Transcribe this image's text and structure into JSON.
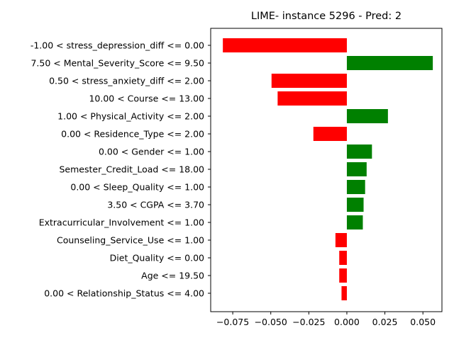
{
  "chart_data": {
    "type": "bar",
    "orientation": "horizontal",
    "title": "LIME- instance 5296 - Pred: 2",
    "xlabel": "",
    "ylabel": "",
    "xlim": [
      -0.0895,
      0.0625
    ],
    "xticks": [
      -0.075,
      -0.05,
      -0.025,
      0.0,
      0.025,
      0.05
    ],
    "xtick_labels": [
      "−0.075",
      "−0.050",
      "−0.025",
      "0.000",
      "0.025",
      "0.050"
    ],
    "grid": false,
    "colors": {
      "positive": "#008000",
      "negative": "#ff0000"
    },
    "categories": [
      "-1.00 < stress_depression_diff <= 0.00",
      "7.50 < Mental_Severity_Score <= 9.50",
      "0.50 < stress_anxiety_diff <= 2.00",
      "10.00 < Course <= 13.00",
      "1.00 < Physical_Activity <= 2.00",
      "0.00 < Residence_Type <= 2.00",
      "0.00 < Gender <= 1.00",
      "Semester_Credit_Load <= 18.00",
      "0.00 < Sleep_Quality <= 1.00",
      "3.50 < CGPA <= 3.70",
      "Extracurricular_Involvement <= 1.00",
      "Counseling_Service_Use <= 1.00",
      "Diet_Quality <= 0.00",
      "Age <= 19.50",
      "0.00 < Relationship_Status <= 4.00"
    ],
    "values": [
      -0.0815,
      0.0565,
      -0.0495,
      -0.0455,
      0.027,
      -0.022,
      0.0165,
      0.013,
      0.012,
      0.011,
      0.0105,
      -0.0075,
      -0.005,
      -0.005,
      -0.0035
    ]
  }
}
